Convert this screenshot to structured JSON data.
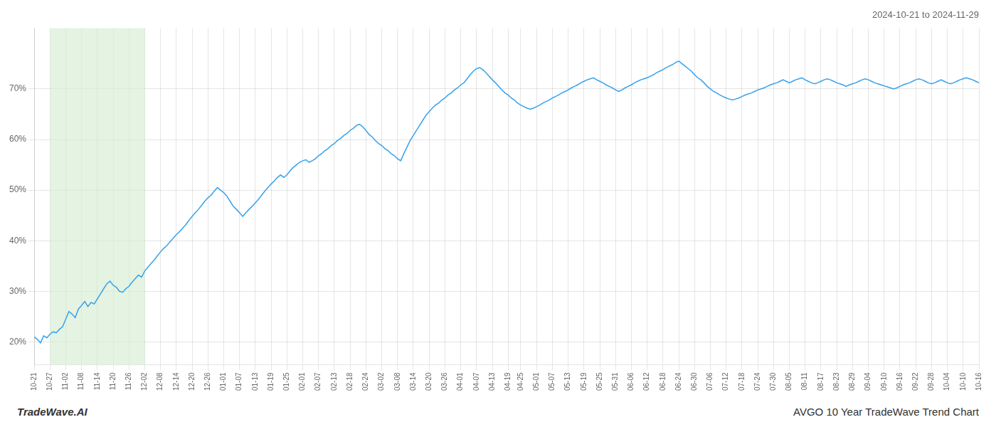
{
  "chart_data": {
    "type": "line",
    "title": "2024-10-21 to 2024-11-29",
    "annotations": [
      "TradeWave.AI",
      "AVGO 10 Year TradeWave Trend Chart"
    ],
    "grid": true,
    "shade": {
      "start": "10-27",
      "end": "12-02",
      "color": "#d6ecd2"
    },
    "ylim": [
      0.155,
      0.82
    ],
    "yticks": [
      {
        "value": 0.2,
        "label": "20%"
      },
      {
        "value": 0.3,
        "label": "30%"
      },
      {
        "value": 0.4,
        "label": "40%"
      },
      {
        "value": 0.5,
        "label": "50%"
      },
      {
        "value": 0.6,
        "label": "60%"
      },
      {
        "value": 0.7,
        "label": "70%"
      }
    ],
    "categories": [
      "10-21",
      null,
      null,
      null,
      null,
      "10-27",
      null,
      null,
      null,
      null,
      "11-02",
      null,
      null,
      null,
      null,
      "11-08",
      null,
      null,
      null,
      null,
      "11-14",
      null,
      null,
      null,
      null,
      "11-20",
      null,
      null,
      null,
      null,
      "11-26",
      null,
      null,
      null,
      null,
      "12-02",
      null,
      null,
      null,
      null,
      "12-08",
      null,
      null,
      null,
      null,
      "12-14",
      null,
      null,
      null,
      null,
      "12-20",
      null,
      null,
      null,
      null,
      "12-26",
      null,
      null,
      null,
      null,
      "01-01",
      null,
      null,
      null,
      null,
      "01-07",
      null,
      null,
      null,
      null,
      "01-13",
      null,
      null,
      null,
      null,
      "01-19",
      null,
      null,
      null,
      null,
      "01-25",
      null,
      null,
      null,
      null,
      "02-01",
      null,
      null,
      null,
      null,
      "02-07",
      null,
      null,
      null,
      null,
      "02-13",
      null,
      null,
      null,
      null,
      "02-18",
      null,
      null,
      null,
      null,
      "02-24",
      null,
      null,
      null,
      null,
      "03-02",
      null,
      null,
      null,
      null,
      "03-08",
      null,
      null,
      null,
      null,
      "03-14",
      null,
      null,
      null,
      null,
      "03-20",
      null,
      null,
      null,
      null,
      "03-26",
      null,
      null,
      null,
      null,
      "04-01",
      null,
      null,
      null,
      null,
      "04-07",
      null,
      null,
      null,
      null,
      "04-13",
      null,
      null,
      null,
      null,
      "04-19",
      null,
      null,
      null,
      "04-25",
      null,
      null,
      null,
      null,
      "05-01",
      null,
      null,
      null,
      null,
      "05-07",
      null,
      null,
      null,
      null,
      "05-13",
      null,
      null,
      null,
      null,
      "05-19",
      null,
      null,
      null,
      null,
      "05-25",
      null,
      null,
      null,
      null,
      "05-31",
      null,
      null,
      null,
      null,
      "06-06",
      null,
      null,
      null,
      null,
      "06-12",
      null,
      null,
      null,
      null,
      "06-18",
      null,
      null,
      null,
      null,
      "06-24",
      null,
      null,
      null,
      null,
      "06-30",
      null,
      null,
      null,
      null,
      "07-06",
      null,
      null,
      null,
      null,
      "07-12",
      null,
      null,
      null,
      null,
      "07-18",
      null,
      null,
      null,
      null,
      "07-24",
      null,
      null,
      null,
      null,
      "07-30",
      null,
      null,
      null,
      null,
      "08-05",
      null,
      null,
      null,
      null,
      "08-11",
      null,
      null,
      null,
      null,
      "08-17",
      null,
      null,
      null,
      null,
      "08-23",
      null,
      null,
      null,
      null,
      "08-29",
      null,
      null,
      null,
      null,
      "09-04",
      null,
      null,
      null,
      null,
      "09-10",
      null,
      null,
      null,
      null,
      "09-16",
      null,
      null,
      null,
      null,
      "09-22",
      null,
      null,
      null,
      null,
      "09-28",
      null,
      null,
      null,
      null,
      "10-04",
      null,
      null,
      null,
      null,
      "10-10",
      null,
      null,
      null,
      null,
      "10-16"
    ],
    "values": [
      0.21,
      0.205,
      0.198,
      0.212,
      0.208,
      0.215,
      0.22,
      0.218,
      0.225,
      0.23,
      0.245,
      0.26,
      0.255,
      0.248,
      0.265,
      0.272,
      0.28,
      0.27,
      0.278,
      0.275,
      0.285,
      0.295,
      0.305,
      0.315,
      0.32,
      0.312,
      0.308,
      0.3,
      0.298,
      0.305,
      0.31,
      0.318,
      0.325,
      0.332,
      0.328,
      0.34,
      0.348,
      0.355,
      0.362,
      0.37,
      0.378,
      0.385,
      0.39,
      0.398,
      0.405,
      0.412,
      0.418,
      0.425,
      0.432,
      0.44,
      0.448,
      0.455,
      0.462,
      0.47,
      0.478,
      0.485,
      0.49,
      0.498,
      0.505,
      0.5,
      0.495,
      0.488,
      0.478,
      0.468,
      0.462,
      0.455,
      0.448,
      0.455,
      0.462,
      0.468,
      0.475,
      0.482,
      0.49,
      0.498,
      0.505,
      0.512,
      0.518,
      0.525,
      0.53,
      0.525,
      0.53,
      0.538,
      0.545,
      0.55,
      0.555,
      0.558,
      0.56,
      0.555,
      0.558,
      0.562,
      0.568,
      0.572,
      0.578,
      0.582,
      0.588,
      0.592,
      0.598,
      0.602,
      0.608,
      0.612,
      0.618,
      0.622,
      0.628,
      0.63,
      0.625,
      0.618,
      0.61,
      0.605,
      0.598,
      0.592,
      0.588,
      0.582,
      0.578,
      0.572,
      0.568,
      0.562,
      0.558,
      0.572,
      0.585,
      0.598,
      0.608,
      0.618,
      0.628,
      0.638,
      0.648,
      0.655,
      0.662,
      0.668,
      0.672,
      0.678,
      0.682,
      0.688,
      0.692,
      0.698,
      0.702,
      0.708,
      0.712,
      0.72,
      0.728,
      0.735,
      0.74,
      0.742,
      0.738,
      0.732,
      0.725,
      0.718,
      0.712,
      0.705,
      0.698,
      0.692,
      0.688,
      0.682,
      0.678,
      0.672,
      0.668,
      0.665,
      0.662,
      0.66,
      0.662,
      0.665,
      0.668,
      0.672,
      0.675,
      0.678,
      0.682,
      0.685,
      0.688,
      0.692,
      0.695,
      0.698,
      0.702,
      0.705,
      0.708,
      0.712,
      0.715,
      0.718,
      0.72,
      0.722,
      0.718,
      0.715,
      0.712,
      0.708,
      0.705,
      0.702,
      0.698,
      0.695,
      0.698,
      0.702,
      0.705,
      0.708,
      0.712,
      0.715,
      0.718,
      0.72,
      0.722,
      0.725,
      0.728,
      0.732,
      0.735,
      0.738,
      0.742,
      0.745,
      0.748,
      0.752,
      0.755,
      0.75,
      0.745,
      0.74,
      0.735,
      0.728,
      0.722,
      0.718,
      0.712,
      0.705,
      0.7,
      0.695,
      0.692,
      0.688,
      0.685,
      0.682,
      0.68,
      0.678,
      0.68,
      0.682,
      0.685,
      0.688,
      0.69,
      0.692,
      0.695,
      0.698,
      0.7,
      0.702,
      0.705,
      0.708,
      0.71,
      0.712,
      0.715,
      0.718,
      0.715,
      0.712,
      0.715,
      0.718,
      0.72,
      0.722,
      0.718,
      0.715,
      0.712,
      0.71,
      0.712,
      0.715,
      0.718,
      0.72,
      0.718,
      0.715,
      0.712,
      0.71,
      0.708,
      0.705,
      0.708,
      0.71,
      0.712,
      0.715,
      0.718,
      0.72,
      0.718,
      0.715,
      0.712,
      0.71,
      0.708,
      0.706,
      0.704,
      0.702,
      0.7,
      0.702,
      0.705,
      0.708,
      0.71,
      0.712,
      0.715,
      0.718,
      0.72,
      0.718,
      0.715,
      0.712,
      0.71,
      0.712,
      0.715,
      0.718,
      0.715,
      0.712,
      0.71,
      0.712,
      0.715,
      0.718,
      0.72,
      0.722,
      0.72,
      0.718,
      0.715,
      0.712
    ]
  }
}
